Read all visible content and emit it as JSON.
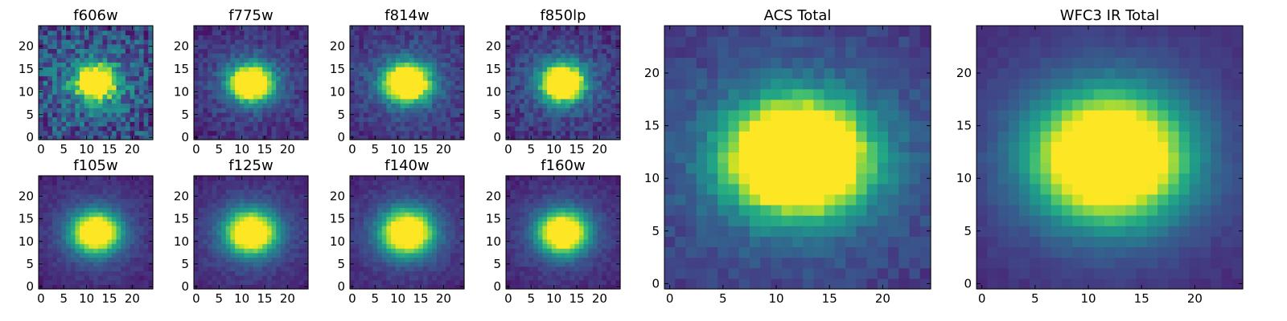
{
  "chart_data": [
    {
      "type": "heatmap",
      "title": "f606w",
      "x_range": [
        -0.5,
        24.5
      ],
      "y_range": [
        -0.5,
        24.5
      ],
      "x_ticks": [
        0,
        5,
        10,
        15,
        20
      ],
      "y_ticks": [
        0,
        5,
        10,
        15,
        20
      ],
      "grid_size": [
        25,
        25
      ],
      "peak_pixel": [
        12,
        12
      ],
      "colormap": "viridis",
      "noise": "high"
    },
    {
      "type": "heatmap",
      "title": "f775w",
      "x_range": [
        -0.5,
        24.5
      ],
      "y_range": [
        -0.5,
        24.5
      ],
      "x_ticks": [
        0,
        5,
        10,
        15,
        20
      ],
      "y_ticks": [
        0,
        5,
        10,
        15,
        20
      ],
      "grid_size": [
        25,
        25
      ],
      "peak_pixel": [
        12,
        12
      ],
      "colormap": "viridis",
      "noise": "medium"
    },
    {
      "type": "heatmap",
      "title": "f814w",
      "x_range": [
        -0.5,
        24.5
      ],
      "y_range": [
        -0.5,
        24.5
      ],
      "x_ticks": [
        0,
        5,
        10,
        15,
        20
      ],
      "y_ticks": [
        0,
        5,
        10,
        15,
        20
      ],
      "grid_size": [
        25,
        25
      ],
      "peak_pixel": [
        12,
        12
      ],
      "colormap": "viridis",
      "noise": "medium"
    },
    {
      "type": "heatmap",
      "title": "f850lp",
      "x_range": [
        -0.5,
        24.5
      ],
      "y_range": [
        -0.5,
        24.5
      ],
      "x_ticks": [
        0,
        5,
        10,
        15,
        20
      ],
      "y_ticks": [
        0,
        5,
        10,
        15,
        20
      ],
      "grid_size": [
        25,
        25
      ],
      "peak_pixel": [
        12,
        12
      ],
      "colormap": "viridis",
      "noise": "medium"
    },
    {
      "type": "heatmap",
      "title": "f105w",
      "x_range": [
        -0.5,
        24.5
      ],
      "y_range": [
        -0.5,
        24.5
      ],
      "x_ticks": [
        0,
        5,
        10,
        15,
        20
      ],
      "y_ticks": [
        0,
        5,
        10,
        15,
        20
      ],
      "grid_size": [
        25,
        25
      ],
      "peak_pixel": [
        12,
        12
      ],
      "colormap": "viridis",
      "noise": "low"
    },
    {
      "type": "heatmap",
      "title": "f125w",
      "x_range": [
        -0.5,
        24.5
      ],
      "y_range": [
        -0.5,
        24.5
      ],
      "x_ticks": [
        0,
        5,
        10,
        15,
        20
      ],
      "y_ticks": [
        0,
        5,
        10,
        15,
        20
      ],
      "grid_size": [
        25,
        25
      ],
      "peak_pixel": [
        12,
        12
      ],
      "colormap": "viridis",
      "noise": "low"
    },
    {
      "type": "heatmap",
      "title": "f140w",
      "x_range": [
        -0.5,
        24.5
      ],
      "y_range": [
        -0.5,
        24.5
      ],
      "x_ticks": [
        0,
        5,
        10,
        15,
        20
      ],
      "y_ticks": [
        0,
        5,
        10,
        15,
        20
      ],
      "grid_size": [
        25,
        25
      ],
      "peak_pixel": [
        12,
        12
      ],
      "colormap": "viridis",
      "noise": "low"
    },
    {
      "type": "heatmap",
      "title": "f160w",
      "x_range": [
        -0.5,
        24.5
      ],
      "y_range": [
        -0.5,
        24.5
      ],
      "x_ticks": [
        0,
        5,
        10,
        15,
        20
      ],
      "y_ticks": [
        0,
        5,
        10,
        15,
        20
      ],
      "grid_size": [
        25,
        25
      ],
      "peak_pixel": [
        12,
        12
      ],
      "colormap": "viridis",
      "noise": "low"
    },
    {
      "type": "heatmap",
      "title": "ACS Total",
      "x_range": [
        -0.5,
        24.5
      ],
      "y_range": [
        -0.5,
        24.5
      ],
      "x_ticks": [
        0,
        5,
        10,
        15,
        20
      ],
      "y_ticks": [
        0,
        5,
        10,
        15,
        20
      ],
      "grid_size": [
        25,
        25
      ],
      "peak_pixel": [
        12,
        12
      ],
      "colormap": "viridis",
      "noise": "low"
    },
    {
      "type": "heatmap",
      "title": "WFC3 IR Total",
      "x_range": [
        -0.5,
        24.5
      ],
      "y_range": [
        -0.5,
        24.5
      ],
      "x_ticks": [
        0,
        5,
        10,
        15,
        20
      ],
      "y_ticks": [
        0,
        5,
        10,
        15,
        20
      ],
      "grid_size": [
        25,
        25
      ],
      "peak_pixel": [
        12,
        12
      ],
      "colormap": "viridis",
      "noise": "very low"
    }
  ]
}
